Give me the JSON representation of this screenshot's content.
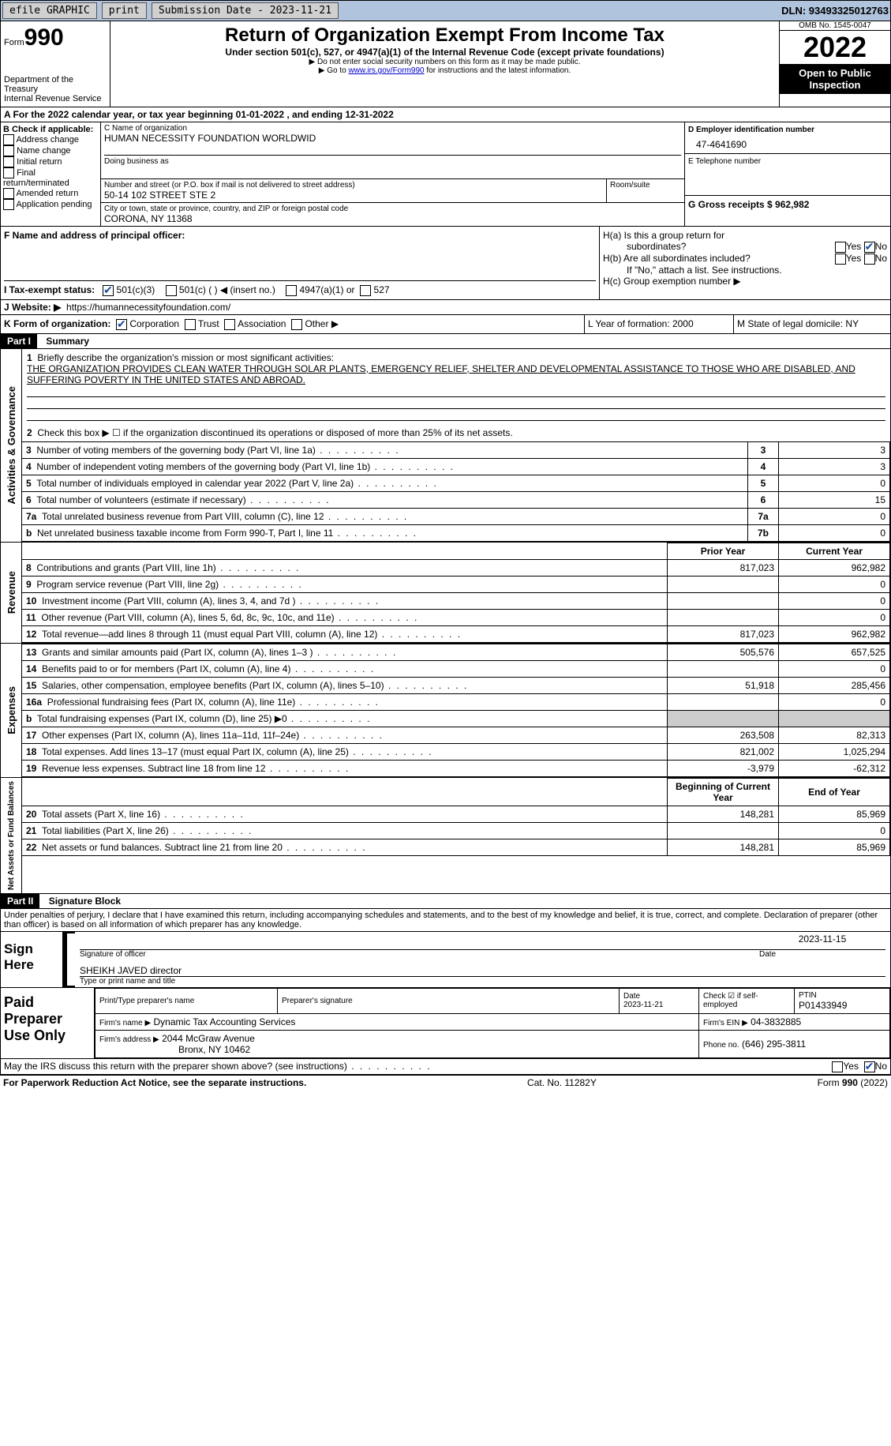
{
  "toolbar": {
    "efile_label": "efile GRAPHIC",
    "print_label": "print",
    "submission_label": "Submission Date - 2023-11-21",
    "dln_label": "DLN: 93493325012763"
  },
  "header": {
    "form_word": "Form",
    "form_number": "990",
    "dept": "Department of the Treasury",
    "irs": "Internal Revenue Service",
    "title": "Return of Organization Exempt From Income Tax",
    "subtitle": "Under section 501(c), 527, or 4947(a)(1) of the Internal Revenue Code (except private foundations)",
    "ssn_note": "▶ Do not enter social security numbers on this form as it may be made public.",
    "goto_pre": "▶ Go to ",
    "goto_link": "www.irs.gov/Form990",
    "goto_post": " for instructions and the latest information.",
    "omb": "OMB No. 1545-0047",
    "year": "2022",
    "open": "Open to Public Inspection"
  },
  "a_line": {
    "text": "A For the 2022 calendar year, or tax year beginning 01-01-2022    , and ending 12-31-2022"
  },
  "b_box": {
    "title": "B Check if applicable:",
    "opts": [
      "Address change",
      "Name change",
      "Initial return",
      "Final return/terminated",
      "Amended return",
      "Application pending"
    ]
  },
  "c_box": {
    "name_label": "C Name of organization",
    "org_name": "HUMAN NECESSITY FOUNDATION WORLDWID",
    "dba_label": "Doing business as",
    "addr_label": "Number and street (or P.O. box if mail is not delivered to street address)",
    "room_label": "Room/suite",
    "addr": "50-14 102 STREET STE 2",
    "city_label": "City or town, state or province, country, and ZIP or foreign postal code",
    "city": "CORONA, NY  11368"
  },
  "d_box": {
    "label": "D Employer identification number",
    "value": "47-4641690"
  },
  "e_box": {
    "label": "E Telephone number",
    "value": ""
  },
  "g_box": {
    "label": "G Gross receipts $ 962,982"
  },
  "f_box": {
    "label": "F  Name and address of principal officer:"
  },
  "h_box": {
    "a1": "H(a)  Is this a group return for",
    "a2": "subordinates?",
    "b1": "H(b)  Are all subordinates included?",
    "b2": "If \"No,\" attach a list. See instructions.",
    "c": "H(c)  Group exemption number ▶",
    "yes": "Yes",
    "no": "No"
  },
  "i_line": {
    "label": "I  Tax-exempt status:",
    "o1": "501(c)(3)",
    "o2": "501(c) (  ) ◀ (insert no.)",
    "o3": "4947(a)(1) or",
    "o4": "527"
  },
  "j_line": {
    "label": "J  Website: ▶",
    "value": "https://humannecessityfoundation.com/"
  },
  "k_line": {
    "label": "K Form of organization:",
    "o1": "Corporation",
    "o2": "Trust",
    "o3": "Association",
    "o4": "Other ▶"
  },
  "l_line": {
    "label": "L Year of formation: 2000"
  },
  "m_line": {
    "label": "M State of legal domicile: NY"
  },
  "part1": {
    "header": "Part I",
    "title": "Summary",
    "side_ag": "Activities & Governance",
    "side_rev": "Revenue",
    "side_exp": "Expenses",
    "side_net": "Net Assets or Fund Balances",
    "q1": "Briefly describe the organization's mission or most significant activities:",
    "mission": "THE ORGANIZATION PROVIDES CLEAN WATER THROUGH SOLAR PLANTS, EMERGENCY RELIEF, SHELTER AND DEVELOPMENTAL ASSISTANCE TO THOSE WHO ARE DISABLED, AND SUFFERING POVERTY IN THE UNITED STATES AND ABROAD.",
    "q2": "Check this box ▶ ☐ if the organization discontinued its operations or disposed of more than 25% of its net assets.",
    "rows_ag": [
      {
        "n": "3",
        "t": "Number of voting members of the governing body (Part VI, line 1a)",
        "box": "3",
        "v": "3"
      },
      {
        "n": "4",
        "t": "Number of independent voting members of the governing body (Part VI, line 1b)",
        "box": "4",
        "v": "3"
      },
      {
        "n": "5",
        "t": "Total number of individuals employed in calendar year 2022 (Part V, line 2a)",
        "box": "5",
        "v": "0"
      },
      {
        "n": "6",
        "t": "Total number of volunteers (estimate if necessary)",
        "box": "6",
        "v": "15"
      },
      {
        "n": "7a",
        "t": "Total unrelated business revenue from Part VIII, column (C), line 12",
        "box": "7a",
        "v": "0"
      },
      {
        "n": "b",
        "t": "Net unrelated business taxable income from Form 990-T, Part I, line 11",
        "box": "7b",
        "v": "0"
      }
    ],
    "col_prior": "Prior Year",
    "col_current": "Current Year",
    "rows_rev": [
      {
        "n": "8",
        "t": "Contributions and grants (Part VIII, line 1h)",
        "p": "817,023",
        "c": "962,982"
      },
      {
        "n": "9",
        "t": "Program service revenue (Part VIII, line 2g)",
        "p": "",
        "c": "0"
      },
      {
        "n": "10",
        "t": "Investment income (Part VIII, column (A), lines 3, 4, and 7d )",
        "p": "",
        "c": "0"
      },
      {
        "n": "11",
        "t": "Other revenue (Part VIII, column (A), lines 5, 6d, 8c, 9c, 10c, and 11e)",
        "p": "",
        "c": "0"
      },
      {
        "n": "12",
        "t": "Total revenue—add lines 8 through 11 (must equal Part VIII, column (A), line 12)",
        "p": "817,023",
        "c": "962,982"
      }
    ],
    "rows_exp": [
      {
        "n": "13",
        "t": "Grants and similar amounts paid (Part IX, column (A), lines 1–3 )",
        "p": "505,576",
        "c": "657,525"
      },
      {
        "n": "14",
        "t": "Benefits paid to or for members (Part IX, column (A), line 4)",
        "p": "",
        "c": "0"
      },
      {
        "n": "15",
        "t": "Salaries, other compensation, employee benefits (Part IX, column (A), lines 5–10)",
        "p": "51,918",
        "c": "285,456"
      },
      {
        "n": "16a",
        "t": "Professional fundraising fees (Part IX, column (A), line 11e)",
        "p": "",
        "c": "0"
      },
      {
        "n": "b",
        "t": "Total fundraising expenses (Part IX, column (D), line 25) ▶0",
        "p": "grey",
        "c": "grey"
      },
      {
        "n": "17",
        "t": "Other expenses (Part IX, column (A), lines 11a–11d, 11f–24e)",
        "p": "263,508",
        "c": "82,313"
      },
      {
        "n": "18",
        "t": "Total expenses. Add lines 13–17 (must equal Part IX, column (A), line 25)",
        "p": "821,002",
        "c": "1,025,294"
      },
      {
        "n": "19",
        "t": "Revenue less expenses. Subtract line 18 from line 12",
        "p": "-3,979",
        "c": "-62,312"
      }
    ],
    "col_begin": "Beginning of Current Year",
    "col_end": "End of Year",
    "rows_net": [
      {
        "n": "20",
        "t": "Total assets (Part X, line 16)",
        "p": "148,281",
        "c": "85,969"
      },
      {
        "n": "21",
        "t": "Total liabilities (Part X, line 26)",
        "p": "",
        "c": "0"
      },
      {
        "n": "22",
        "t": "Net assets or fund balances. Subtract line 21 from line 20",
        "p": "148,281",
        "c": "85,969"
      }
    ]
  },
  "part2": {
    "header": "Part II",
    "title": "Signature Block",
    "penalty": "Under penalties of perjury, I declare that I have examined this return, including accompanying schedules and statements, and to the best of my knowledge and belief, it is true, correct, and complete. Declaration of preparer (other than officer) is based on all information of which preparer has any knowledge.",
    "sign_here": "Sign Here",
    "sig_officer": "Signature of officer",
    "sig_date": "2023-11-15",
    "date_lbl": "Date",
    "name_title": "SHEIKH JAVED  director",
    "type_name": "Type or print name and title",
    "paid": "Paid Preparer Use Only",
    "prep_name_lbl": "Print/Type preparer's name",
    "prep_sig_lbl": "Preparer's signature",
    "prep_date": "Date\n2023-11-21",
    "check_if": "Check ☑ if self-employed",
    "ptin_lbl": "PTIN",
    "ptin": "P01433949",
    "firm_name_lbl": "Firm's name    ▶",
    "firm_name": "Dynamic Tax Accounting Services",
    "firm_ein_lbl": "Firm's EIN ▶",
    "firm_ein": "04-3832885",
    "firm_addr_lbl": "Firm's address ▶",
    "firm_addr": "2044 McGraw Avenue",
    "firm_city": "Bronx, NY  10462",
    "phone_lbl": "Phone no.",
    "phone": "(646) 295-3811",
    "discuss": "May the IRS discuss this return with the preparer shown above? (see instructions)",
    "yes": "Yes",
    "no": "No"
  },
  "footer": {
    "left": "For Paperwork Reduction Act Notice, see the separate instructions.",
    "mid": "Cat. No. 11282Y",
    "right": "Form 990 (2022)"
  }
}
